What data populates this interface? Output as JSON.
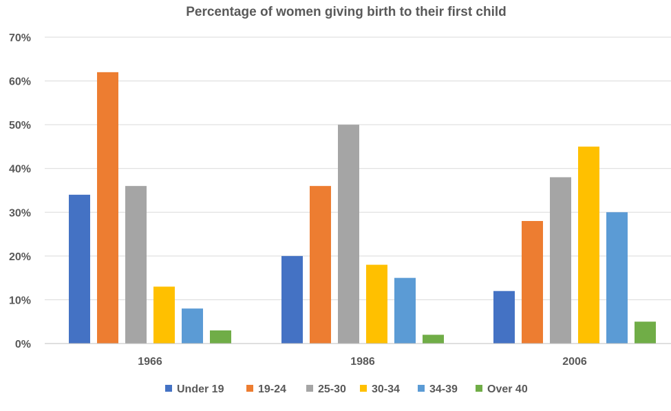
{
  "chart_data": {
    "type": "bar",
    "title": "Percentage of women giving birth to their first child",
    "xlabel": "",
    "ylabel": "",
    "categories": [
      "1966",
      "1986",
      "2006"
    ],
    "series": [
      {
        "name": "Under 19",
        "color": "#4472C4",
        "values": [
          34,
          20,
          12
        ]
      },
      {
        "name": "19-24",
        "color": "#ED7D31",
        "values": [
          62,
          36,
          28
        ]
      },
      {
        "name": "25-30",
        "color": "#A5A5A5",
        "values": [
          36,
          50,
          38
        ]
      },
      {
        "name": "30-34",
        "color": "#FFC000",
        "values": [
          13,
          18,
          45
        ]
      },
      {
        "name": "34-39",
        "color": "#5B9BD5",
        "values": [
          8,
          15,
          30
        ]
      },
      {
        "name": "Over 40",
        "color": "#70AD47",
        "values": [
          3,
          2,
          5
        ]
      }
    ],
    "ylim": [
      0,
      70
    ],
    "yticks": [
      0,
      10,
      20,
      30,
      40,
      50,
      60,
      70
    ],
    "ytick_labels": [
      "0%",
      "10%",
      "20%",
      "30%",
      "40%",
      "50%",
      "60%",
      "70%"
    ],
    "grid": true,
    "legend_position": "bottom"
  }
}
